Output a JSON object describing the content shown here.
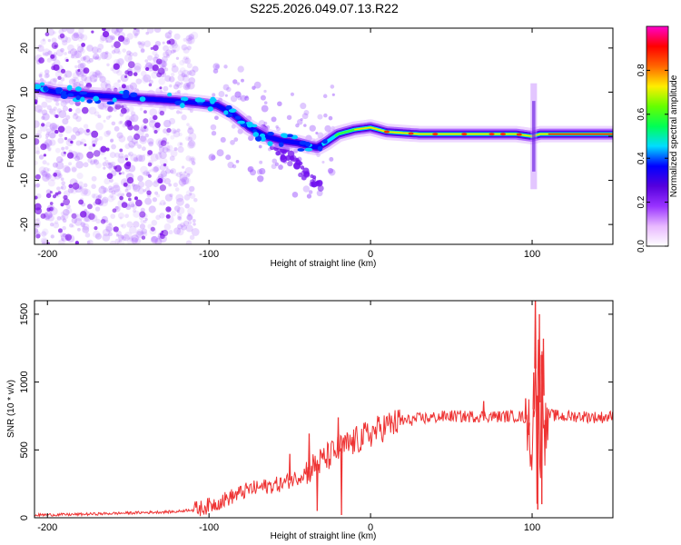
{
  "title": "S225.2026.049.07.13.R22",
  "chart_data": [
    {
      "type": "heatmap",
      "title": "S225.2026.049.07.13.R22",
      "xlabel": "Height of straight line (km)",
      "ylabel": "Frequency (Hz)",
      "xlim": [
        -208,
        150
      ],
      "ylim": [
        -24.5,
        24.5
      ],
      "xticks": [
        -200,
        -100,
        0,
        100
      ],
      "yticks": [
        -20,
        -10,
        0,
        10,
        20
      ],
      "xtick_labels": [
        "-200",
        "-100",
        "0",
        "100"
      ],
      "ytick_labels": [
        "-20",
        "-10",
        "0",
        "10",
        "20"
      ],
      "ridge": {
        "x": [
          -208,
          -195,
          -180,
          -160,
          -140,
          -120,
          -105,
          -95,
          -85,
          -75,
          -65,
          -55,
          -45,
          -38,
          -33,
          -28,
          -20,
          -10,
          0,
          10,
          30,
          60,
          90,
          100,
          105,
          120,
          150
        ],
        "y": [
          11,
          10,
          9.5,
          9,
          8.5,
          8,
          7.5,
          7,
          5,
          2,
          0,
          -1,
          -1.5,
          -2.2,
          -2.5,
          -1.5,
          0.5,
          1.5,
          2,
          1,
          0.5,
          0.5,
          0.5,
          0,
          0.5,
          0.5,
          0.5
        ]
      },
      "colorbar": {
        "label": "Normalized spectral amplitude",
        "range": [
          0,
          1
        ],
        "ticks": [
          0.0,
          0.2,
          0.4,
          0.6,
          0.8
        ],
        "tick_labels": [
          "0.0",
          "0.2",
          "0.4",
          "0.6",
          "0.8"
        ],
        "colors": [
          "#ffffff",
          "#e8b8ff",
          "#9933ff",
          "#5500dd",
          "#0000ff",
          "#00ddff",
          "#00ff55",
          "#66ff00",
          "#ffee00",
          "#ff6600",
          "#ff0000",
          "#ff00cc"
        ]
      }
    },
    {
      "type": "line",
      "xlabel": "Height of straight line (km)",
      "ylabel": "SNR (10 * v/v)",
      "xlim": [
        -208,
        150
      ],
      "ylim": [
        0,
        1600
      ],
      "xticks": [
        -200,
        -100,
        0,
        100
      ],
      "yticks": [
        0,
        500,
        1000,
        1500
      ],
      "xtick_labels": [
        "-200",
        "-100",
        "0",
        "100"
      ],
      "ytick_labels": [
        "0",
        "500",
        "1000",
        "1500"
      ],
      "color": "#ee3333",
      "series": [
        {
          "name": "SNR",
          "x": [
            -208,
            -180,
            -150,
            -120,
            -105,
            -95,
            -85,
            -75,
            -65,
            -55,
            -45,
            -40,
            -35,
            -30,
            -25,
            -20,
            -10,
            0,
            10,
            20,
            30,
            40,
            50,
            60,
            70,
            80,
            90,
            95,
            98,
            100,
            102,
            103,
            104,
            105,
            106,
            108,
            110,
            120,
            130,
            140,
            150
          ],
          "y": [
            20,
            25,
            35,
            45,
            70,
            110,
            160,
            210,
            230,
            250,
            300,
            340,
            380,
            420,
            460,
            500,
            560,
            620,
            680,
            710,
            730,
            740,
            750,
            745,
            750,
            745,
            750,
            740,
            700,
            500,
            1100,
            300,
            1500,
            200,
            1200,
            600,
            760,
            745,
            750,
            740,
            745
          ]
        }
      ],
      "spikes": [
        {
          "x": 102,
          "y": 1650
        },
        {
          "x": 103.5,
          "y": 60
        },
        {
          "x": 104.5,
          "y": 1500
        },
        {
          "x": 106,
          "y": 100
        },
        {
          "x": 107,
          "y": 1320
        },
        {
          "x": 101,
          "y": 1070
        },
        {
          "x": -38,
          "y": 620
        },
        {
          "x": -33,
          "y": 50
        },
        {
          "x": -20,
          "y": 740
        },
        {
          "x": -18,
          "y": 20
        },
        {
          "x": -50,
          "y": 470
        },
        {
          "x": 70,
          "y": 860
        },
        {
          "x": 96,
          "y": 880
        },
        {
          "x": 98,
          "y": 610
        },
        {
          "x": 108,
          "y": 720
        }
      ]
    }
  ]
}
